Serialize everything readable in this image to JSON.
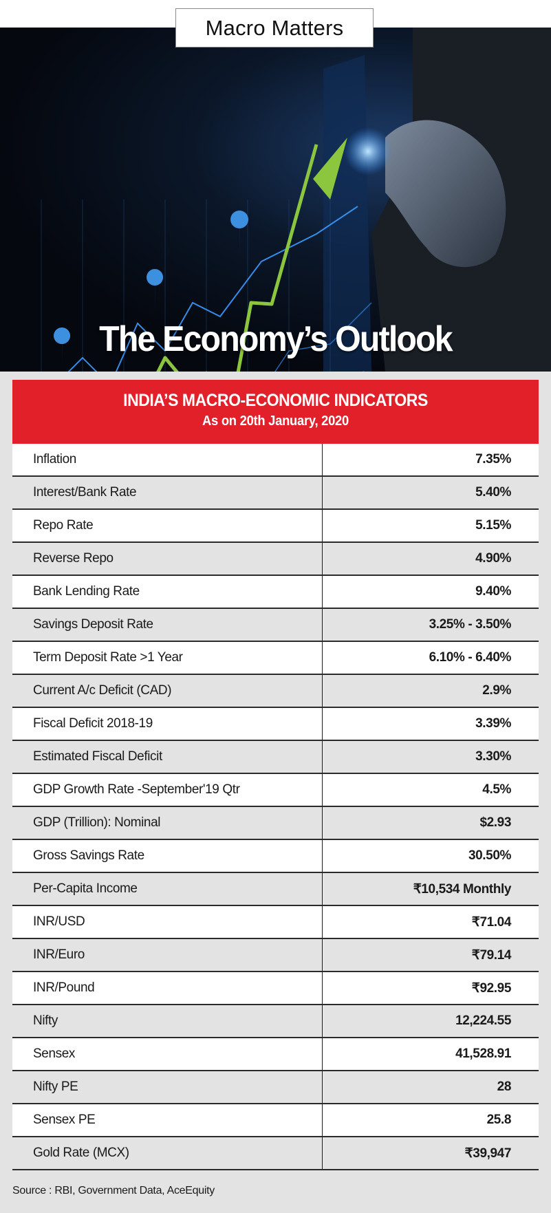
{
  "header": {
    "banner_label": "Macro Matters",
    "title": "The Economy’s Outlook"
  },
  "hero_image": {
    "icon": "businessman-drawing-rising-chart-image",
    "accent_colors": {
      "arrow": "#8cc63f",
      "glow": "#2f8fff"
    }
  },
  "table": {
    "title": "INDIA’S MACRO-ECONOMIC INDICATORS",
    "subtitle": "As on 20th January, 2020",
    "header_color": "#e2202a",
    "rows": [
      {
        "label": "Inflation",
        "value": "7.35%"
      },
      {
        "label": "Interest/Bank Rate",
        "value": "5.40%"
      },
      {
        "label": "Repo Rate",
        "value": "5.15%"
      },
      {
        "label": "Reverse Repo",
        "value": "4.90%"
      },
      {
        "label": "Bank Lending Rate",
        "value": "9.40%"
      },
      {
        "label": "Savings Deposit Rate",
        "value": "3.25% - 3.50%"
      },
      {
        "label": "Term Deposit Rate >1 Year",
        "value": "6.10% - 6.40%"
      },
      {
        "label": "Current A/c Deficit (CAD)",
        "value": "2.9%"
      },
      {
        "label": "Fiscal Deficit 2018-19",
        "value": "3.39%"
      },
      {
        "label": "Estimated Fiscal Deficit",
        "value": "3.30%"
      },
      {
        "label": "GDP Growth Rate -September'19 Qtr",
        "value": "4.5%"
      },
      {
        "label": "GDP (Trillion): Nominal",
        "value": "$2.93"
      },
      {
        "label": "Gross Savings Rate",
        "value": "30.50%"
      },
      {
        "label": "Per-Capita Income",
        "value": "₹10,534 Monthly"
      },
      {
        "label": "INR/USD",
        "value": "₹71.04"
      },
      {
        "label": "INR/Euro",
        "value": "₹79.14"
      },
      {
        "label": "INR/Pound",
        "value": "₹92.95"
      },
      {
        "label": "Nifty",
        "value": "12,224.55"
      },
      {
        "label": "Sensex",
        "value": "41,528.91"
      },
      {
        "label": "Nifty PE",
        "value": "28"
      },
      {
        "label": "Sensex PE",
        "value": "25.8"
      },
      {
        "label": "Gold Rate (MCX)",
        "value": "₹39,947"
      }
    ]
  },
  "footer": {
    "source": "Source : RBI, Government Data, AceEquity"
  }
}
